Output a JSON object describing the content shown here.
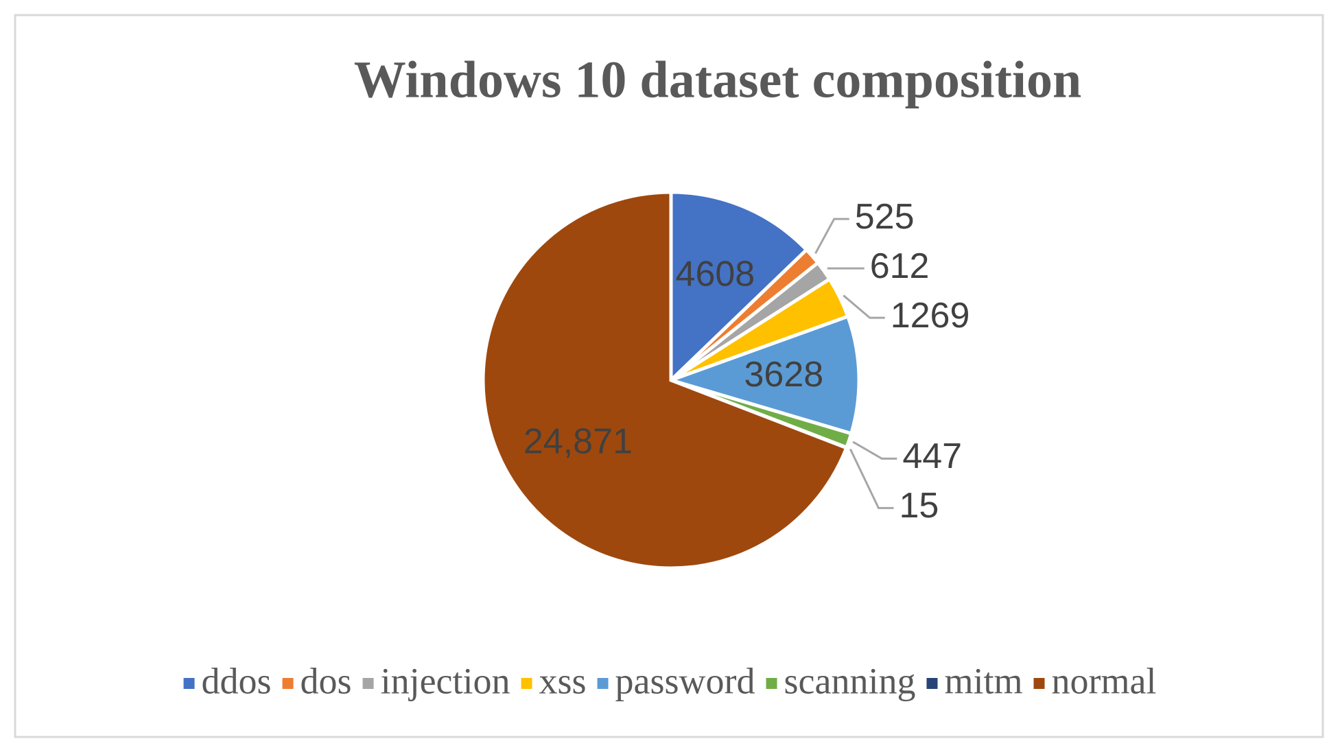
{
  "chart_data": {
    "type": "pie",
    "title": "Windows 10 dataset composition",
    "categories": [
      "ddos",
      "dos",
      "injection",
      "xss",
      "password",
      "scanning",
      "mitm",
      "normal"
    ],
    "values": [
      4608,
      525,
      612,
      1269,
      3628,
      447,
      15,
      24871
    ],
    "value_labels": [
      "4608",
      "525",
      "612",
      "1269",
      "3628",
      "447",
      "15",
      "24,871"
    ],
    "colors": [
      "#4472c4",
      "#ed7d31",
      "#a5a5a5",
      "#ffc000",
      "#5b9bd5",
      "#70ad47",
      "#264478",
      "#9e480e"
    ],
    "legend": "bottom"
  }
}
